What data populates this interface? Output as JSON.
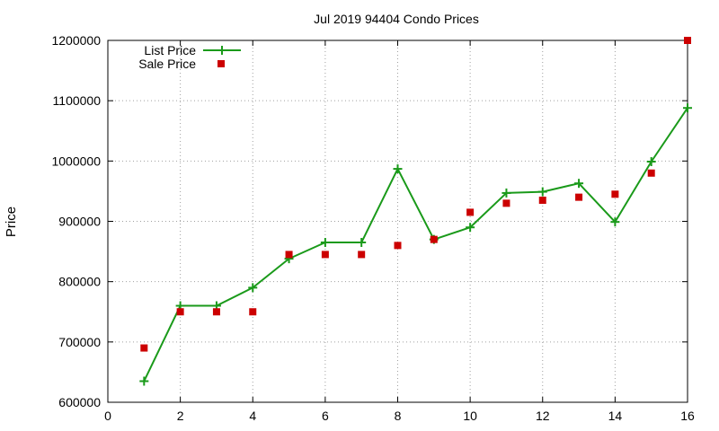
{
  "chart_data": {
    "type": "line",
    "title": "Jul 2019 94404 Condo Prices",
    "xlabel": "",
    "ylabel": "Price",
    "xlim": [
      0,
      16
    ],
    "ylim": [
      600000,
      1200000
    ],
    "xticks": [
      0,
      2,
      4,
      6,
      8,
      10,
      12,
      14,
      16
    ],
    "yticks": [
      600000,
      700000,
      800000,
      900000,
      1000000,
      1100000,
      1200000
    ],
    "grid": true,
    "legend_position": "top-left",
    "series": [
      {
        "name": "List Price",
        "style": "line-with-plus-markers",
        "color": "#1a9a1a",
        "x": [
          1,
          2,
          3,
          4,
          5,
          6,
          7,
          8,
          9,
          10,
          11,
          12,
          13,
          14,
          15,
          16
        ],
        "values": [
          635000,
          760000,
          760000,
          790000,
          838000,
          865000,
          865000,
          987000,
          870000,
          890000,
          947000,
          949000,
          963000,
          899000,
          999000,
          1088000
        ]
      },
      {
        "name": "Sale Price",
        "style": "square-markers",
        "color": "#cc0000",
        "x": [
          1,
          2,
          3,
          4,
          5,
          6,
          7,
          8,
          9,
          10,
          11,
          12,
          13,
          14,
          15,
          16
        ],
        "values": [
          690000,
          750000,
          750000,
          750000,
          845000,
          845000,
          845000,
          860000,
          870000,
          915000,
          930000,
          935000,
          940000,
          945000,
          980000,
          1200000
        ]
      }
    ]
  }
}
